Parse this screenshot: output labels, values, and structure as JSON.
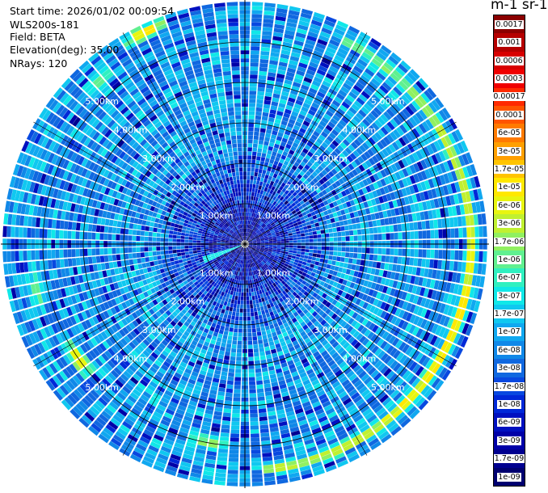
{
  "header": {
    "start_time": "Start time: 2026/01/02 00:09:54",
    "instrument": "WLS200s-181",
    "field": "Field: BETA",
    "elevation": "Elevation(deg): 35.00",
    "nrays": "NRays: 120"
  },
  "colorbar": {
    "title": "m-1 sr-1",
    "labels": [
      "0.0017",
      "0.001",
      "0.0006",
      "0.0003",
      "0.00017",
      "0.0001",
      "6e-05",
      "3e-05",
      "1.7e-05",
      "1e-05",
      "6e-06",
      "3e-06",
      "1.7e-06",
      "1e-06",
      "6e-07",
      "3e-07",
      "1.7e-07",
      "1e-07",
      "6e-08",
      "3e-08",
      "1.7e-08",
      "1e-08",
      "6e-09",
      "3e-09",
      "1.7e-09",
      "1e-09"
    ],
    "colors": [
      "#8b0000",
      "#b50000",
      "#d80000",
      "#f00000",
      "#ff2a00",
      "#ff5500",
      "#ff7a00",
      "#ff9f00",
      "#ffc400",
      "#ffe800",
      "#e8f510",
      "#c0f030",
      "#90f060",
      "#60f090",
      "#30f0c0",
      "#10e8e8",
      "#10c8f0",
      "#10a8f0",
      "#1088e8",
      "#1068e0",
      "#0848e0",
      "#0028d8",
      "#0010c0",
      "#0000a8",
      "#000090",
      "#000070"
    ]
  },
  "chart_data": {
    "type": "polar_ppi",
    "title": "",
    "field": "BETA",
    "units": "m-1 sr-1",
    "elevation_deg": 35.0,
    "nrays": 120,
    "range_rings_km": [
      1,
      2,
      3,
      4,
      5
    ],
    "ring_labels": [
      "1.00km",
      "2.00km",
      "3.00km",
      "4.00km",
      "5.00km"
    ],
    "max_range_km": 6.0,
    "background_beta": 1e-07,
    "aerosol_layer": {
      "range_km": 5.6,
      "peak_beta": 3e-05,
      "azimuth_start_deg": 25,
      "azimuth_end_deg": 175,
      "peak_azimuth_deg": 115
    },
    "clutter_patches": [
      {
        "azimuth_deg": 335,
        "range_km": 5.8,
        "beta": 1.7e-05
      },
      {
        "azimuth_deg": 318,
        "range_km": 5.4,
        "beta": 1.7e-06
      },
      {
        "azimuth_deg": 190,
        "range_km": 5.0,
        "beta": 3e-06
      },
      {
        "azimuth_deg": 235,
        "range_km": 5.0,
        "beta": 1.7e-05
      },
      {
        "azimuth_deg": 258,
        "range_km": 5.3,
        "beta": 1.7e-06
      }
    ],
    "near_field_beam": {
      "azimuth_deg": 250,
      "range_km": 1.1,
      "beta": 3e-07
    }
  }
}
